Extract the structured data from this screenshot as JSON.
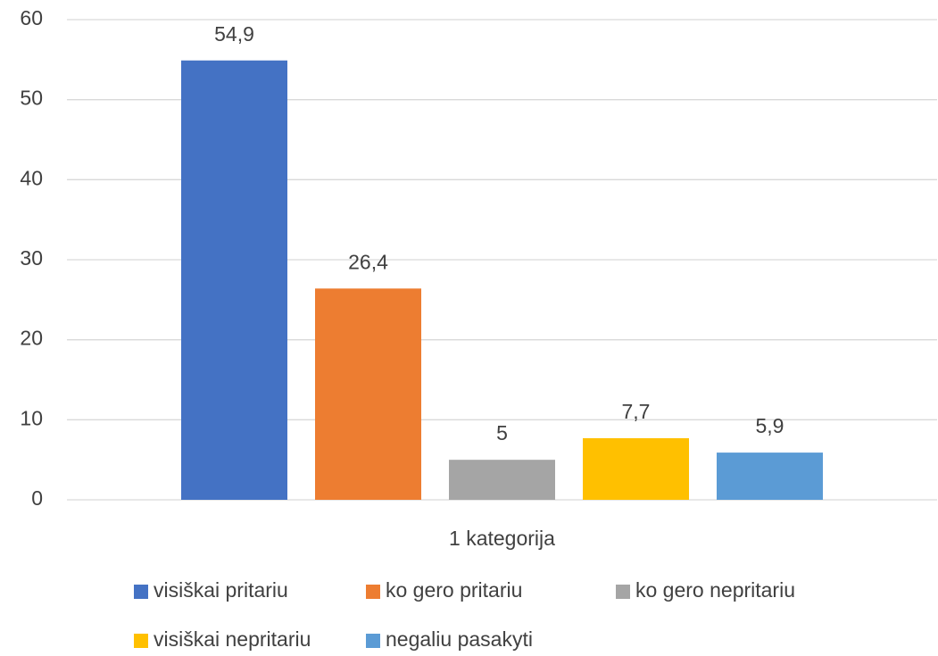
{
  "chart_data": {
    "type": "bar",
    "categories": [
      "1 kategorija"
    ],
    "series": [
      {
        "name": "visiškai pritariu",
        "color": "#4472c4",
        "values": [
          54.9
        ],
        "value_labels": [
          "54,9"
        ]
      },
      {
        "name": "ko gero pritariu",
        "color": "#ed7d31",
        "values": [
          26.4
        ],
        "value_labels": [
          "26,4"
        ]
      },
      {
        "name": "ko gero nepritariu",
        "color": "#a5a5a5",
        "values": [
          5
        ],
        "value_labels": [
          "5"
        ]
      },
      {
        "name": "visiškai nepritariu",
        "color": "#ffc000",
        "values": [
          7.7
        ],
        "value_labels": [
          "7,7"
        ]
      },
      {
        "name": "negaliu pasakyti",
        "color": "#5b9bd5",
        "values": [
          5.9
        ],
        "value_labels": [
          "5,9"
        ]
      }
    ],
    "ylim": [
      0,
      60
    ],
    "yticks": [
      0,
      10,
      20,
      30,
      40,
      50,
      60
    ],
    "grid": true,
    "legend": "bottom"
  }
}
